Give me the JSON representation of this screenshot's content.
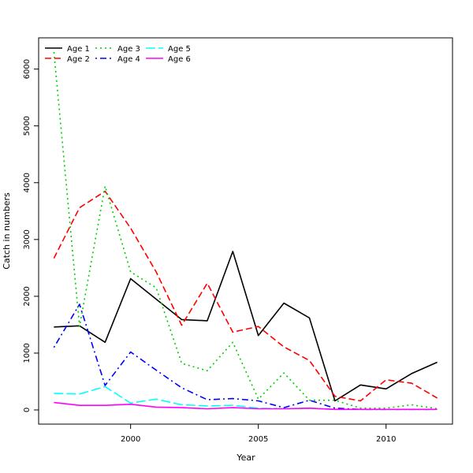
{
  "chart_data": {
    "type": "line",
    "title": "",
    "xlabel": "Year",
    "ylabel": "Catch in numbers",
    "x": [
      1997,
      1998,
      1999,
      2000,
      2001,
      2002,
      2003,
      2004,
      2005,
      2006,
      2007,
      2008,
      2009,
      2010,
      2011,
      2012
    ],
    "xlim": [
      1996.4,
      2012.6
    ],
    "ylim": [
      -250,
      6550
    ],
    "xticks": [
      2000,
      2005,
      2010
    ],
    "yticks": [
      0,
      1000,
      2000,
      3000,
      4000,
      5000,
      6000
    ],
    "legend_position": "top-left",
    "grid": false,
    "series": [
      {
        "name": "Age 1",
        "color": "#000000",
        "dash": "solid",
        "values": [
          1460,
          1480,
          1190,
          2310,
          1950,
          1590,
          1570,
          2790,
          1310,
          1880,
          1620,
          160,
          440,
          370,
          640,
          840
        ]
      },
      {
        "name": "Age 2",
        "color": "#ff0000",
        "dash": "dashed",
        "values": [
          2670,
          3560,
          3850,
          3200,
          2430,
          1490,
          2230,
          1370,
          1470,
          1110,
          870,
          240,
          160,
          530,
          470,
          210
        ]
      },
      {
        "name": "Age 3",
        "color": "#00cd00",
        "dash": "dotted",
        "values": [
          6300,
          1470,
          3940,
          2430,
          2150,
          820,
          690,
          1190,
          190,
          650,
          170,
          170,
          30,
          30,
          90,
          20
        ]
      },
      {
        "name": "Age 4",
        "color": "#0000ff",
        "dash": "dotdash",
        "values": [
          1100,
          1860,
          430,
          1020,
          700,
          390,
          180,
          200,
          160,
          40,
          170,
          30,
          10,
          10,
          10,
          10
        ]
      },
      {
        "name": "Age 5",
        "color": "#00ffff",
        "dash": "longdash",
        "values": [
          290,
          280,
          410,
          120,
          190,
          90,
          70,
          80,
          30,
          20,
          30,
          10,
          10,
          10,
          10,
          10
        ]
      },
      {
        "name": "Age 6",
        "color": "#ff00ff",
        "dash": "solid",
        "values": [
          130,
          80,
          80,
          100,
          50,
          40,
          20,
          40,
          20,
          20,
          30,
          10,
          10,
          10,
          10,
          10
        ]
      }
    ]
  }
}
